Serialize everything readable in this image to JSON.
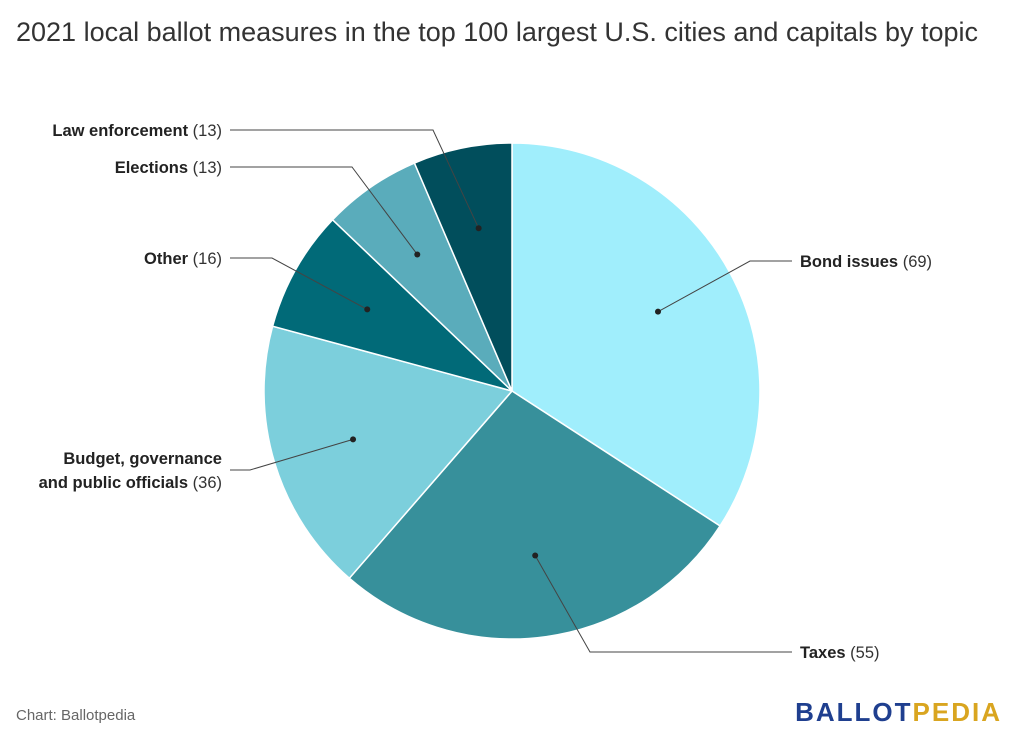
{
  "title": "2021 local ballot measures in the top 100 largest U.S. cities and capitals by topic",
  "source": "Chart: Ballotpedia",
  "brand": {
    "part1": "BALLOT",
    "part2": "PEDIA"
  },
  "chart_data": {
    "type": "pie",
    "title": "2021 local ballot measures in the top 100 largest U.S. cities and capitals by topic",
    "slices": [
      {
        "label": "Bond issues",
        "value": 69,
        "color": "#a0eefc"
      },
      {
        "label": "Taxes",
        "value": 55,
        "color": "#37909b"
      },
      {
        "label": "Budget, governance and public officials",
        "value": 36,
        "color": "#7ccfdc"
      },
      {
        "label": "Other",
        "value": 16,
        "color": "#016a78"
      },
      {
        "label": "Elections",
        "value": 13,
        "color": "#5aacbb"
      },
      {
        "label": "Law enforcement",
        "value": 13,
        "color": "#014e5c"
      }
    ]
  }
}
